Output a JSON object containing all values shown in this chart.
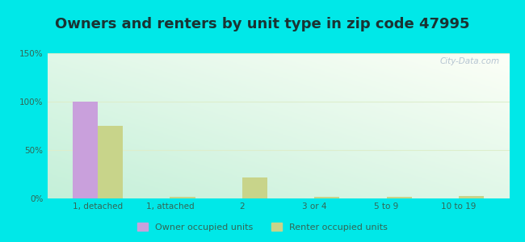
{
  "title": "Owners and renters by unit type in zip code 47995",
  "categories": [
    "1, detached",
    "1, attached",
    "2",
    "3 or 4",
    "5 to 9",
    "10 to 19"
  ],
  "owner_values": [
    100,
    0,
    0,
    0,
    0,
    0
  ],
  "renter_values": [
    75,
    1.5,
    22,
    1.5,
    1.5,
    2.5
  ],
  "owner_color": "#c9a0dc",
  "renter_color": "#c8d48a",
  "outer_bg": "#00e8e8",
  "ylim": [
    0,
    150
  ],
  "yticks": [
    0,
    50,
    100,
    150
  ],
  "ytick_labels": [
    "0%",
    "50%",
    "100%",
    "150%"
  ],
  "title_fontsize": 13,
  "bar_width": 0.35,
  "watermark": "City-Data.com",
  "grid_color": "#ddeecc",
  "tick_color": "#336655"
}
